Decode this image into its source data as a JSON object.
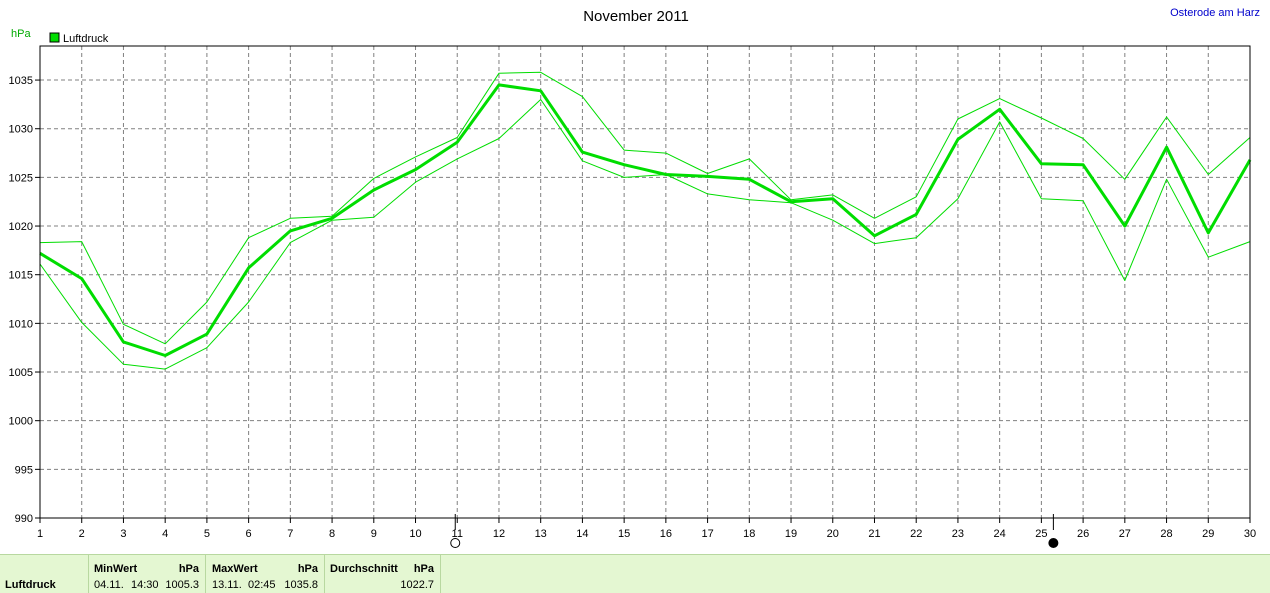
{
  "chart_data": {
    "type": "line",
    "title": "November 2011",
    "location": "Osterode am Harz",
    "ylabel": "hPa",
    "ylim": [
      990,
      1038.5
    ],
    "yticks": [
      990,
      995,
      1000,
      1005,
      1010,
      1015,
      1020,
      1025,
      1030,
      1035
    ],
    "x": [
      1,
      2,
      3,
      4,
      5,
      6,
      7,
      8,
      9,
      10,
      11,
      12,
      13,
      14,
      15,
      16,
      17,
      18,
      19,
      20,
      21,
      22,
      23,
      24,
      25,
      26,
      27,
      28,
      29,
      30
    ],
    "legend": [
      "Luftdruck"
    ],
    "grid": true,
    "series": [
      {
        "name": "Luftdruck",
        "role": "avg",
        "color": "#00dd00",
        "values": [
          1017.2,
          1014.6,
          1008.1,
          1006.7,
          1008.9,
          1015.7,
          1019.5,
          1020.8,
          1023.7,
          1025.8,
          1028.6,
          1034.5,
          1033.9,
          1027.6,
          1026.3,
          1025.3,
          1025.1,
          1024.8,
          1022.5,
          1022.8,
          1019.0,
          1021.2,
          1028.9,
          1032.0,
          1026.4,
          1026.3,
          1020.0,
          1028.1,
          1019.3,
          1026.8
        ]
      },
      {
        "role": "max",
        "color": "#00dd00",
        "values": [
          1018.3,
          1018.4,
          1009.9,
          1007.9,
          1012.2,
          1018.8,
          1020.8,
          1021.0,
          1024.9,
          1027.1,
          1029.1,
          1035.7,
          1035.8,
          1033.3,
          1027.8,
          1027.5,
          1025.4,
          1026.9,
          1022.7,
          1023.2,
          1020.8,
          1023.0,
          1031.0,
          1033.1,
          1031.1,
          1029.0,
          1024.8,
          1031.2,
          1025.3,
          1029.1
        ]
      },
      {
        "role": "min",
        "color": "#00dd00",
        "values": [
          1016.1,
          1010.1,
          1005.8,
          1005.3,
          1007.5,
          1012.2,
          1018.3,
          1020.6,
          1020.9,
          1024.5,
          1026.9,
          1029.0,
          1033.0,
          1026.7,
          1025.0,
          1025.3,
          1023.3,
          1022.7,
          1022.4,
          1020.6,
          1018.2,
          1018.8,
          1022.8,
          1030.7,
          1022.8,
          1022.6,
          1014.4,
          1024.8,
          1016.8,
          1018.4
        ]
      }
    ],
    "moon_phases": [
      {
        "day": 11,
        "phase": "full-moon"
      },
      {
        "day": 25,
        "phase": "new-moon"
      }
    ]
  },
  "stats": {
    "row_label": "Luftdruck",
    "min_header": "MinWert",
    "min_unit": "hPa",
    "min_date": "04.11.",
    "min_time": "14:30",
    "min_value": "1005.3",
    "max_header": "MaxWert",
    "max_unit": "hPa",
    "max_date": "13.11.",
    "max_time": "02:45",
    "max_value": "1035.8",
    "avg_header": "Durchschnitt",
    "avg_unit": "hPa",
    "avg_value": "1022.7"
  }
}
